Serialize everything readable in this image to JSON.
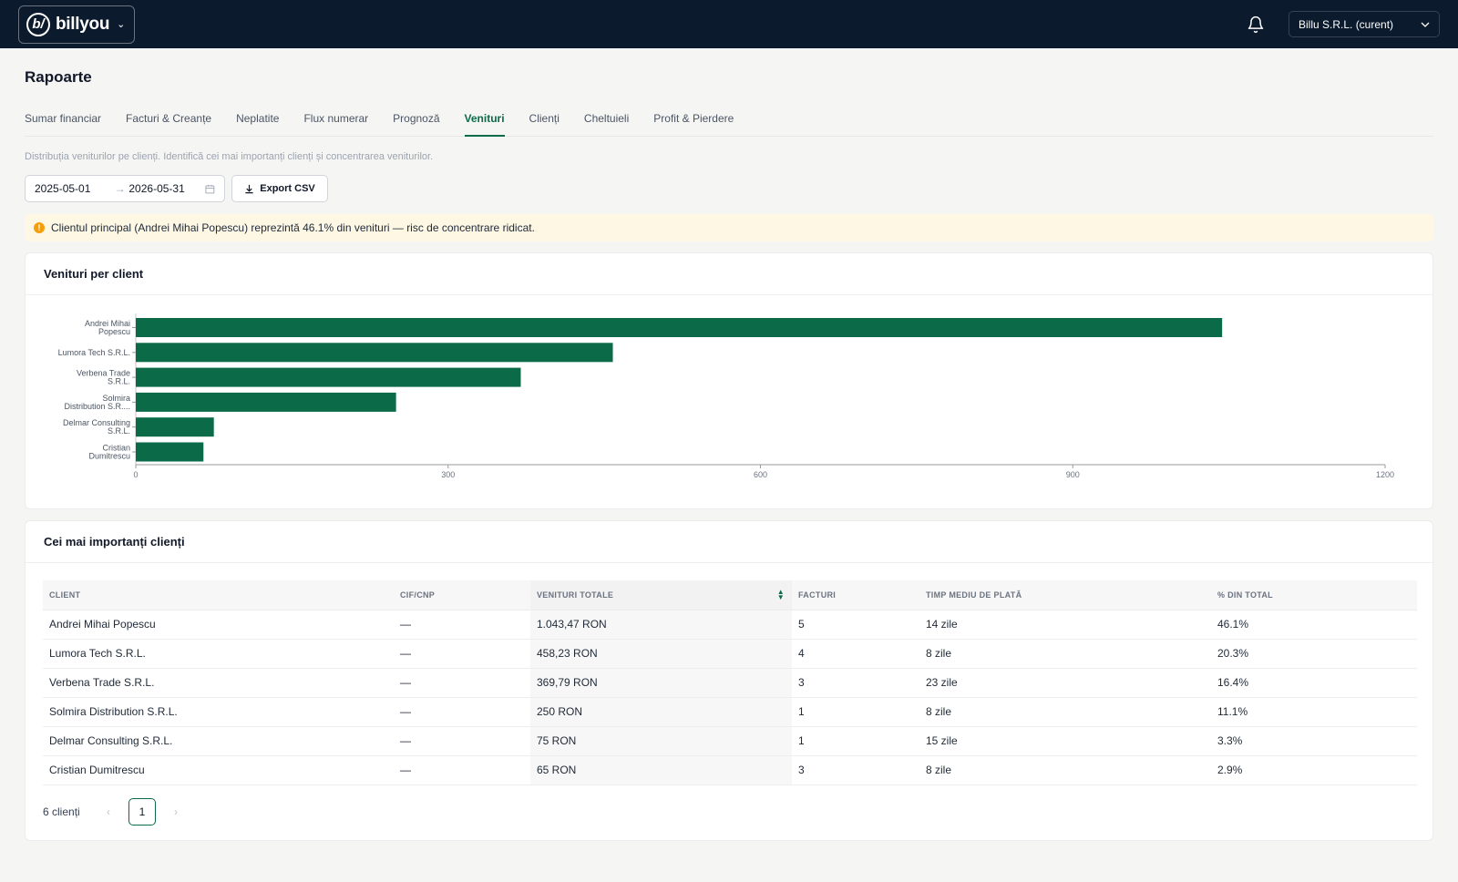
{
  "header": {
    "brand_mark": "b/",
    "brand_name": "billyou",
    "company_selector": "Billu S.R.L. (curent)"
  },
  "page": {
    "title": "Rapoarte",
    "tabs": [
      {
        "label": "Sumar financiar",
        "active": false
      },
      {
        "label": "Facturi & Creanțe",
        "active": false
      },
      {
        "label": "Neplatite",
        "active": false
      },
      {
        "label": "Flux numerar",
        "active": false
      },
      {
        "label": "Prognoză",
        "active": false
      },
      {
        "label": "Venituri",
        "active": true
      },
      {
        "label": "Clienți",
        "active": false
      },
      {
        "label": "Cheltuieli",
        "active": false
      },
      {
        "label": "Profit & Pierdere",
        "active": false
      }
    ],
    "description": "Distribuția veniturilor pe clienți. Identifică cei mai importanți clienți și concentrarea veniturilor.",
    "date_from": "2025-05-01",
    "date_to": "2026-05-31",
    "export_label": "Export CSV",
    "alert_text": "Clientul principal (Andrei Mihai Popescu) reprezintă 46.1% din venituri — risc de concentrare ridicat."
  },
  "chart_card": {
    "title": "Venituri per client"
  },
  "chart_data": {
    "type": "bar",
    "orientation": "horizontal",
    "categories": [
      [
        "Andrei Mihai",
        "Popescu"
      ],
      [
        "Lumora Tech S.R.L."
      ],
      [
        "Verbena Trade",
        "S.R.L."
      ],
      [
        "Solmira",
        "Distribution S.R...."
      ],
      [
        "Delmar Consulting",
        "S.R.L."
      ],
      [
        "Cristian",
        "Dumitrescu"
      ]
    ],
    "values": [
      1043.47,
      458.23,
      369.79,
      250,
      75,
      65
    ],
    "xlim": [
      0,
      1200
    ],
    "xticks": [
      "0",
      "300",
      "600",
      "900",
      "1200"
    ],
    "bar_color": "#0b6b48",
    "grid": false
  },
  "table_card": {
    "title": "Cei mai importanți clienți",
    "columns": [
      "CLIENT",
      "CIF/CNP",
      "VENITURI TOTALE",
      "FACTURI",
      "TIMP MEDIU DE PLATĂ",
      "% DIN TOTAL"
    ],
    "rows": [
      [
        "Andrei Mihai Popescu",
        "—",
        "1.043,47 RON",
        "5",
        "14 zile",
        "46.1%"
      ],
      [
        "Lumora Tech S.R.L.",
        "—",
        "458,23 RON",
        "4",
        "8 zile",
        "20.3%"
      ],
      [
        "Verbena Trade S.R.L.",
        "—",
        "369,79 RON",
        "3",
        "23 zile",
        "16.4%"
      ],
      [
        "Solmira Distribution S.R.L.",
        "—",
        "250 RON",
        "1",
        "8 zile",
        "11.1%"
      ],
      [
        "Delmar Consulting S.R.L.",
        "—",
        "75 RON",
        "1",
        "15 zile",
        "3.3%"
      ],
      [
        "Cristian Dumitrescu",
        "—",
        "65 RON",
        "3",
        "8 zile",
        "2.9%"
      ]
    ],
    "count_label": "6 clienți",
    "current_page": "1",
    "prev_icon": "‹",
    "next_icon": "›"
  },
  "colors": {
    "accent": "#0b6b48",
    "topbar": "#0b1a2c",
    "alert_bg": "#fdf7e4",
    "alert_icon": "#f59e0b"
  }
}
